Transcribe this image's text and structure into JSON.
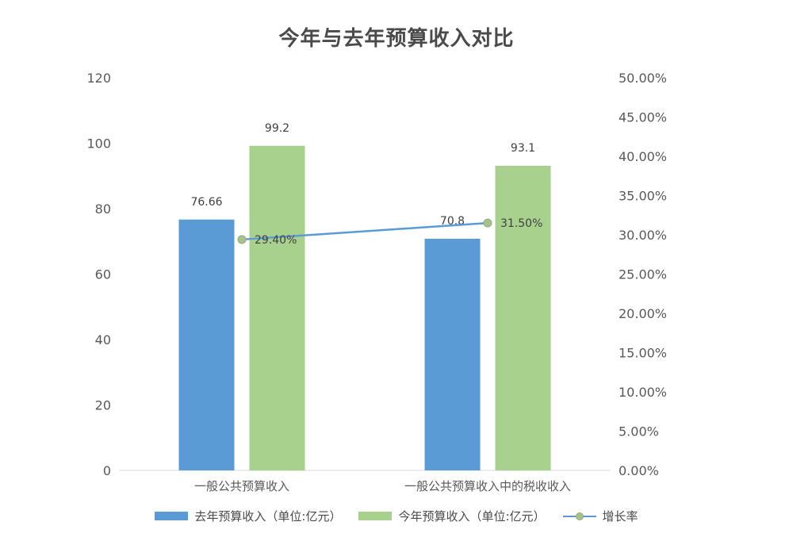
{
  "chart_data": {
    "type": "bar",
    "title": "今年与去年预算收入对比",
    "categories": [
      "一般公共预算收入",
      "一般公共预算收入中的税收收入"
    ],
    "series": [
      {
        "name": "去年预算收入（单位:亿元）",
        "type": "bar",
        "axis": "left",
        "values": [
          76.66,
          70.8
        ],
        "labels": [
          "76.66",
          "70.8"
        ],
        "color": "#5b9bd5"
      },
      {
        "name": "今年预算收入（单位:亿元）",
        "type": "bar",
        "axis": "left",
        "values": [
          99.2,
          93.1
        ],
        "labels": [
          "99.2",
          "93.1"
        ],
        "color": "#a9d18e"
      },
      {
        "name": "增长率",
        "type": "line",
        "axis": "right",
        "values": [
          29.4,
          31.5
        ],
        "labels": [
          "29.40%",
          "31.50%"
        ],
        "color": "#5b9bd5",
        "marker_color": "#a9c18f"
      }
    ],
    "ylim": [
      0,
      120
    ],
    "y_ticks": [
      "0",
      "20",
      "40",
      "60",
      "80",
      "100",
      "120"
    ],
    "y2lim": [
      0,
      50
    ],
    "y2_ticks": [
      "0.00%",
      "5.00%",
      "10.00%",
      "15.00%",
      "20.00%",
      "25.00%",
      "30.00%",
      "35.00%",
      "40.00%",
      "45.00%",
      "50.00%"
    ],
    "legend_position": "bottom",
    "grid": false
  }
}
